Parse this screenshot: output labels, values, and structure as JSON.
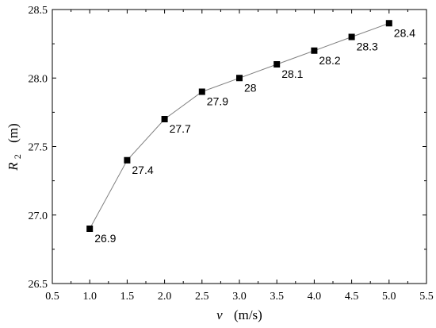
{
  "chart_data": {
    "type": "line",
    "title": "",
    "x": [
      1.0,
      1.5,
      2.0,
      2.5,
      3.0,
      3.5,
      4.0,
      4.5,
      5.0
    ],
    "series": [
      {
        "values": [
          26.9,
          27.4,
          27.7,
          27.9,
          28.0,
          28.1,
          28.2,
          28.3,
          28.4
        ],
        "data_labels": [
          "26.9",
          "27.4",
          "27.7",
          "27.9",
          "28",
          "28.1",
          "28.2",
          "28.3",
          "28.4"
        ],
        "marker": "square",
        "line_color": "#808080",
        "marker_color": "#000000"
      }
    ],
    "xlabel_var": "v",
    "xlabel_unit": "(m/s)",
    "ylabel_var": "R",
    "ylabel_sub": "2",
    "ylabel_unit": "(m)",
    "xlim": [
      0.5,
      5.5
    ],
    "ylim": [
      26.5,
      28.5
    ],
    "xticks": [
      "0.5",
      "1.0",
      "1.5",
      "2.0",
      "2.5",
      "3.0",
      "3.5",
      "4.0",
      "4.5",
      "5.0",
      "5.5"
    ],
    "yticks": [
      "26.5",
      "27.0",
      "27.5",
      "28.0",
      "28.5"
    ],
    "grid": false,
    "legend": "none"
  }
}
